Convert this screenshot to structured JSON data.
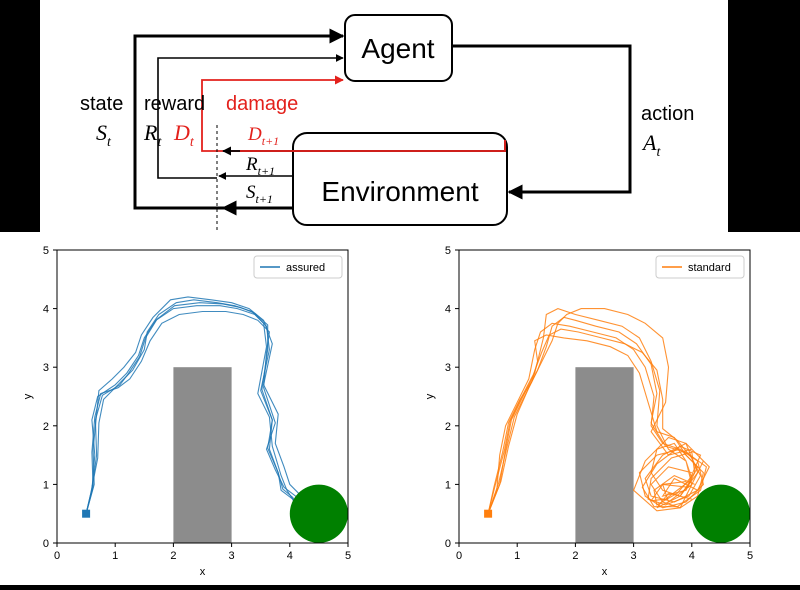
{
  "diagram": {
    "agent": "Agent",
    "environment": "Environment",
    "state_word": "state",
    "state_sym": "S",
    "state_sub": "t",
    "reward_word": "reward",
    "reward_sym": "R",
    "reward_sub": "t",
    "damage_word": "damage",
    "damage_sym": "D",
    "damage_sub": "t",
    "damage_next_sym": "D",
    "damage_next_sub": "t+1",
    "reward_next_sym": "R",
    "reward_next_sub": "t+1",
    "state_next_sym": "S",
    "state_next_sub": "t+1",
    "action_word": "action",
    "action_sym": "A",
    "action_sub": "t",
    "colors": {
      "black": "#000000",
      "damage": "#e3211c"
    }
  },
  "chart_data": [
    {
      "type": "line",
      "legend": "assured",
      "legend_position": "top-right",
      "xlabel": "x",
      "ylabel": "y",
      "xlim": [
        0,
        5
      ],
      "ylim": [
        0,
        5
      ],
      "xticks": [
        "0",
        "1",
        "2",
        "3",
        "4",
        "5"
      ],
      "yticks": [
        "0",
        "1",
        "2",
        "3",
        "4",
        "5"
      ],
      "color": "#1f77b4",
      "obstacle": {
        "x": [
          2,
          3
        ],
        "y": [
          0,
          3
        ],
        "color": "#8c8c8c"
      },
      "goal": {
        "center": [
          4.5,
          0.5
        ],
        "radius": 0.5,
        "color": "#008000"
      },
      "start": [
        0.5,
        0.5
      ],
      "series": [
        {
          "x": [
            0.5,
            0.6,
            0.65,
            0.6,
            0.7,
            1.0,
            1.2,
            1.4,
            1.5,
            1.7,
            2.0,
            2.4,
            2.8,
            3.1,
            3.4,
            3.6,
            3.65,
            3.5,
            3.7,
            3.65,
            3.8,
            3.85,
            4.05,
            4.1
          ],
          "y": [
            0.5,
            0.9,
            1.5,
            2.1,
            2.5,
            2.7,
            2.9,
            3.2,
            3.5,
            3.8,
            4.0,
            4.05,
            4.05,
            4.0,
            3.9,
            3.7,
            3.3,
            2.6,
            2.1,
            1.6,
            1.2,
            0.9,
            0.75,
            0.65
          ]
        },
        {
          "x": [
            0.5,
            0.62,
            0.6,
            0.65,
            0.75,
            1.05,
            1.25,
            1.45,
            1.6,
            1.8,
            2.1,
            2.5,
            2.9,
            3.2,
            3.45,
            3.65,
            3.6,
            3.55,
            3.75,
            3.6,
            3.75,
            3.9,
            4.1,
            4.15
          ],
          "y": [
            0.5,
            0.95,
            1.55,
            2.15,
            2.55,
            2.65,
            2.8,
            3.1,
            3.45,
            3.75,
            3.9,
            3.95,
            3.95,
            3.9,
            3.8,
            3.6,
            3.25,
            2.65,
            2.05,
            1.6,
            1.25,
            0.95,
            0.8,
            0.7
          ]
        },
        {
          "x": [
            0.5,
            0.58,
            0.7,
            0.72,
            0.8,
            1.1,
            1.3,
            1.5,
            1.55,
            1.75,
            2.05,
            2.35,
            2.75,
            3.05,
            3.35,
            3.55,
            3.6,
            3.45,
            3.65,
            3.7,
            3.85,
            3.95,
            4.05,
            4.1
          ],
          "y": [
            0.5,
            0.85,
            1.45,
            2.05,
            2.45,
            2.75,
            2.95,
            3.3,
            3.6,
            3.9,
            4.1,
            4.15,
            4.1,
            4.05,
            3.95,
            3.75,
            3.35,
            2.55,
            2.15,
            1.65,
            1.15,
            0.9,
            0.75,
            0.65
          ]
        },
        {
          "x": [
            0.5,
            0.64,
            0.62,
            0.68,
            0.72,
            0.95,
            1.15,
            1.35,
            1.45,
            1.65,
            1.95,
            2.25,
            2.65,
            3.0,
            3.3,
            3.55,
            3.7,
            3.55,
            3.8,
            3.75,
            3.9,
            4.0,
            4.15,
            4.2
          ],
          "y": [
            0.5,
            1.0,
            1.6,
            2.2,
            2.6,
            2.8,
            3.0,
            3.25,
            3.55,
            3.85,
            4.15,
            4.2,
            4.15,
            4.1,
            4.0,
            3.8,
            3.4,
            2.7,
            2.2,
            1.7,
            1.3,
            1.0,
            0.85,
            0.7
          ]
        },
        {
          "x": [
            0.5,
            0.6,
            0.68,
            0.66,
            0.78,
            1.08,
            1.22,
            1.42,
            1.52,
            1.72,
            2.02,
            2.45,
            2.85,
            3.15,
            3.4,
            3.62,
            3.62,
            3.52,
            3.7,
            3.62,
            3.8,
            3.88,
            4.05,
            4.12
          ],
          "y": [
            0.5,
            0.92,
            1.5,
            2.1,
            2.52,
            2.7,
            2.88,
            3.18,
            3.5,
            3.82,
            4.05,
            4.1,
            4.08,
            4.02,
            3.92,
            3.72,
            3.3,
            2.62,
            2.1,
            1.62,
            1.2,
            0.92,
            0.78,
            0.66
          ]
        }
      ]
    },
    {
      "type": "line",
      "legend": "standard",
      "legend_position": "top-right",
      "xlabel": "x",
      "ylabel": "y",
      "xlim": [
        0,
        5
      ],
      "ylim": [
        0,
        5
      ],
      "xticks": [
        "0",
        "1",
        "2",
        "3",
        "4",
        "5"
      ],
      "yticks": [
        "0",
        "1",
        "2",
        "3",
        "4",
        "5"
      ],
      "color": "#ff7f0e",
      "obstacle": {
        "x": [
          2,
          3
        ],
        "y": [
          0,
          3
        ],
        "color": "#8c8c8c"
      },
      "goal": {
        "center": [
          4.5,
          0.5
        ],
        "radius": 0.5,
        "color": "#008000"
      },
      "start": [
        0.5,
        0.5
      ],
      "series": [
        {
          "x": [
            0.5,
            0.7,
            0.8,
            0.9,
            1.1,
            1.3,
            1.45,
            1.5,
            1.7,
            2.0,
            2.4,
            2.8,
            3.1,
            3.3,
            3.45,
            3.4,
            3.6,
            3.9,
            4.0,
            3.8,
            3.5,
            3.3,
            3.4,
            3.7,
            3.9,
            4.0,
            3.8,
            3.5,
            3.3,
            3.6,
            4.0
          ],
          "y": [
            0.5,
            1.0,
            1.6,
            2.1,
            2.5,
            2.9,
            3.5,
            3.9,
            4.0,
            3.9,
            3.8,
            3.7,
            3.5,
            3.1,
            2.6,
            2.0,
            1.6,
            1.4,
            1.1,
            0.8,
            0.9,
            1.2,
            1.6,
            1.7,
            1.4,
            1.0,
            0.6,
            0.7,
            1.0,
            1.3,
            1.2
          ]
        },
        {
          "x": [
            0.5,
            0.65,
            0.7,
            0.8,
            1.0,
            1.2,
            1.3,
            1.4,
            1.6,
            1.9,
            2.3,
            2.7,
            3.0,
            3.2,
            3.35,
            3.3,
            3.5,
            3.8,
            4.1,
            4.2,
            3.9,
            3.5,
            3.2,
            3.1,
            3.4,
            3.8,
            4.1,
            3.9,
            3.5,
            3.7,
            4.1
          ],
          "y": [
            0.5,
            0.9,
            1.5,
            2.0,
            2.4,
            2.8,
            3.3,
            3.6,
            3.75,
            3.7,
            3.6,
            3.5,
            3.3,
            3.0,
            2.5,
            2.0,
            1.7,
            1.6,
            1.4,
            1.0,
            0.7,
            0.6,
            0.8,
            1.2,
            1.5,
            1.6,
            1.3,
            0.9,
            0.8,
            1.1,
            0.9
          ]
        },
        {
          "x": [
            0.5,
            0.6,
            0.75,
            0.85,
            1.05,
            1.25,
            1.35,
            1.3,
            1.5,
            1.8,
            2.2,
            2.6,
            2.9,
            3.1,
            3.25,
            3.4,
            3.7,
            3.9,
            4.2,
            4.1,
            3.8,
            3.4,
            3.0,
            3.2,
            3.6,
            3.9,
            4.1,
            3.8,
            3.4,
            3.6,
            4.0
          ],
          "y": [
            0.5,
            0.95,
            1.55,
            2.05,
            2.45,
            2.75,
            3.1,
            3.45,
            3.55,
            3.5,
            3.45,
            3.35,
            3.2,
            2.9,
            2.4,
            1.9,
            1.8,
            1.5,
            1.2,
            0.8,
            0.6,
            0.55,
            0.9,
            1.4,
            1.8,
            1.7,
            1.2,
            0.8,
            0.6,
            0.85,
            0.75
          ]
        },
        {
          "x": [
            0.5,
            0.72,
            0.85,
            1.0,
            1.2,
            1.4,
            1.6,
            1.7,
            1.85,
            2.1,
            2.5,
            2.9,
            3.2,
            3.5,
            3.6,
            3.55,
            3.3,
            3.6,
            4.0,
            4.3,
            4.1,
            3.7,
            3.3,
            3.2,
            3.5,
            3.9,
            4.2,
            4.0,
            3.6,
            3.5,
            3.9
          ],
          "y": [
            0.5,
            1.05,
            1.65,
            2.2,
            2.65,
            3.05,
            3.45,
            3.75,
            3.9,
            4.0,
            4.0,
            3.9,
            3.75,
            3.5,
            3.0,
            2.4,
            1.9,
            1.5,
            1.6,
            1.3,
            0.9,
            0.7,
            0.8,
            1.1,
            1.5,
            1.7,
            1.4,
            1.0,
            0.7,
            1.0,
            1.05
          ]
        },
        {
          "x": [
            0.5,
            0.62,
            0.78,
            0.88,
            1.08,
            1.28,
            1.42,
            1.55,
            1.75,
            2.05,
            2.45,
            2.85,
            3.15,
            3.4,
            3.5,
            3.5,
            3.75,
            4.0,
            4.15,
            3.95,
            3.55,
            3.25,
            3.3,
            3.65,
            4.0,
            4.05,
            3.75,
            3.4,
            3.35,
            3.7,
            4.05
          ],
          "y": [
            0.5,
            0.98,
            1.58,
            2.08,
            2.5,
            2.88,
            3.25,
            3.55,
            3.65,
            3.6,
            3.5,
            3.4,
            3.25,
            2.95,
            2.45,
            1.95,
            1.75,
            1.45,
            1.15,
            0.8,
            0.65,
            0.75,
            1.1,
            1.45,
            1.55,
            1.2,
            0.85,
            0.65,
            0.9,
            1.15,
            1.0
          ]
        },
        {
          "x": [
            0.5,
            0.68,
            0.82,
            0.95,
            1.15,
            1.35,
            1.5,
            1.6,
            1.8,
            2.0,
            2.35,
            2.75,
            3.05,
            3.3,
            3.4,
            3.3,
            3.55,
            3.9,
            4.25,
            4.15,
            3.75,
            3.35,
            3.15,
            3.4,
            3.8,
            4.15,
            3.95,
            3.55,
            3.3,
            3.5,
            3.95
          ],
          "y": [
            0.5,
            1.02,
            1.62,
            2.15,
            2.55,
            2.95,
            3.35,
            3.7,
            3.85,
            3.8,
            3.7,
            3.6,
            3.4,
            3.05,
            2.55,
            2.05,
            1.65,
            1.55,
            1.3,
            0.9,
            0.62,
            0.62,
            0.95,
            1.35,
            1.65,
            1.5,
            1.05,
            0.75,
            0.72,
            1.0,
            0.95
          ]
        }
      ]
    }
  ]
}
